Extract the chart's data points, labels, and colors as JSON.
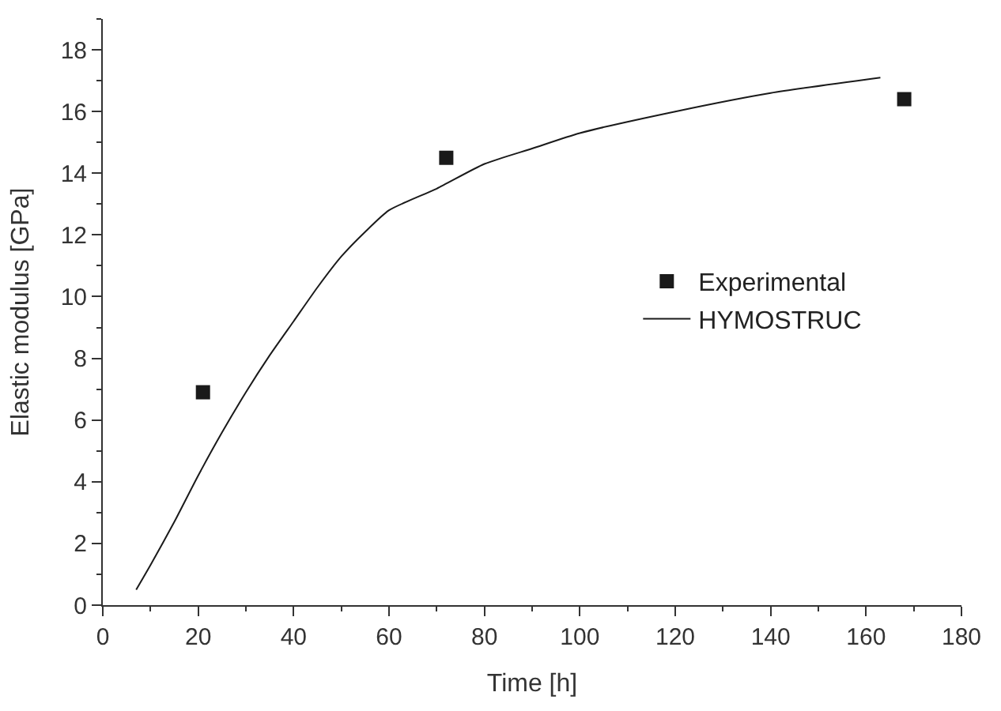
{
  "chart_data": {
    "type": "scatter",
    "xlabel": "Time [h]",
    "ylabel": "Elastic modulus [GPa]",
    "xlim": [
      0,
      180
    ],
    "xticks": [
      0,
      20,
      40,
      60,
      80,
      100,
      120,
      140,
      160,
      180
    ],
    "ylim": [
      0,
      19
    ],
    "yticks": [
      0,
      2,
      4,
      6,
      8,
      10,
      12,
      14,
      16,
      18
    ],
    "legend": "right",
    "series": [
      {
        "name": "Experimental",
        "type": "scatter",
        "marker": "square",
        "color": "#1a1a1a",
        "x": [
          21,
          72,
          168
        ],
        "values": [
          6.9,
          14.5,
          16.4
        ]
      },
      {
        "name": "HYMOSTRUC",
        "type": "line",
        "marker": "none",
        "line_style": "solid",
        "color": "#1a1a1a",
        "x": [
          7,
          10,
          15,
          20,
          25,
          30,
          35,
          40,
          45,
          50,
          55,
          60,
          70,
          80,
          90,
          100,
          120,
          140,
          163
        ],
        "values": [
          0.5,
          1.3,
          2.7,
          4.2,
          5.6,
          6.9,
          8.1,
          9.2,
          10.3,
          11.3,
          12.1,
          12.8,
          13.5,
          14.3,
          14.8,
          15.3,
          16.0,
          16.6,
          17.1
        ]
      }
    ]
  }
}
